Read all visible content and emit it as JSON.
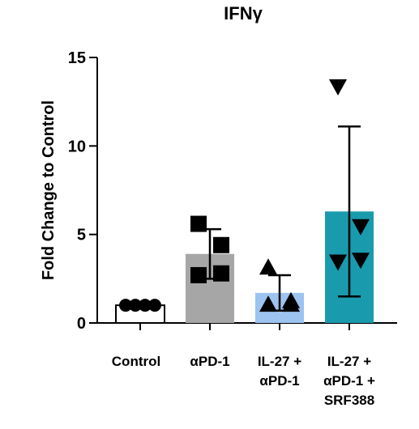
{
  "chart_data": {
    "type": "bar",
    "title": "IFNγ",
    "y_label": "Fold Change to Control",
    "categories": [
      [
        "Control"
      ],
      [
        "αPD-1"
      ],
      [
        "IL-27 +",
        "αPD-1"
      ],
      [
        "IL-27 +",
        "αPD-1 +",
        "SRF388"
      ]
    ],
    "values": [
      1.0,
      3.9,
      1.7,
      6.3
    ],
    "errors": [
      null,
      1.4,
      1.0,
      4.8
    ],
    "colors": [
      "#ffffff",
      "#a6a6a6",
      "#9dc3f0",
      "#1a9aad"
    ],
    "markers": [
      "circle",
      "square",
      "triangle",
      "triangle-down"
    ],
    "points": [
      [
        1.0,
        1.0,
        1.0,
        1.0
      ],
      [
        5.6,
        4.4,
        2.7,
        2.8
      ],
      [
        3.1,
        1.2,
        1.0,
        1.0
      ],
      [
        13.4,
        5.5,
        3.5,
        3.6
      ]
    ],
    "ylim": [
      0,
      15
    ],
    "yticks": [
      0,
      5,
      10,
      15
    ]
  }
}
